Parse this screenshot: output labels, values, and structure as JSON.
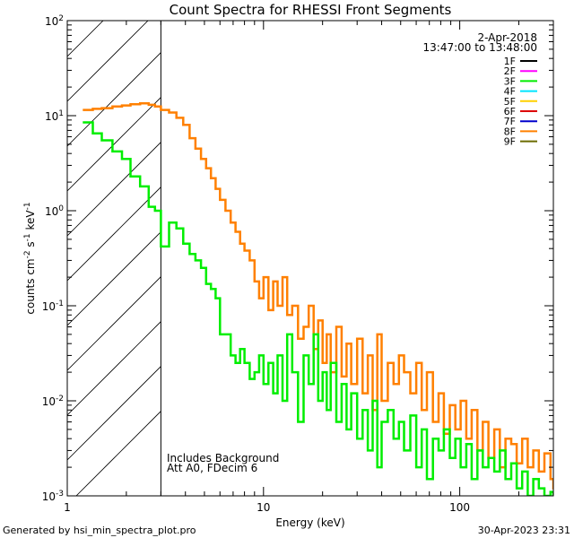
{
  "chart_data": {
    "type": "line",
    "title": "Count Spectra for RHESSI Front Segments",
    "xlabel": "Energy (keV)",
    "ylabel": {
      "base": "counts cm",
      "exp1": "-2",
      "mid": " s",
      "exp2": "-1",
      "mid2": " keV",
      "exp3": "-1"
    },
    "xscale": "log",
    "yscale": "log",
    "xlim": [
      1,
      300
    ],
    "ylim": [
      0.001,
      100
    ],
    "x_ticks": [
      {
        "value": 1,
        "label": "1"
      },
      {
        "value": 10,
        "label": "10"
      },
      {
        "value": 100,
        "label": "100"
      }
    ],
    "y_ticks": [
      {
        "value": 100,
        "base": "10",
        "exp": "2"
      },
      {
        "value": 10,
        "base": "10",
        "exp": "1"
      },
      {
        "value": 1,
        "base": "10",
        "exp": "0"
      },
      {
        "value": 0.1,
        "base": "10",
        "exp": "-1"
      },
      {
        "value": 0.01,
        "base": "10",
        "exp": "-2"
      },
      {
        "value": 0.001,
        "base": "10",
        "exp": "-3"
      }
    ],
    "hatched_region": {
      "x_min": 1,
      "x_max": 3
    },
    "annotations": {
      "date": "2-Apr-2018",
      "time_range": "13:47:00 to 13:48:00",
      "background_note": "Includes Background",
      "attenuator_note": "Att A0, FDecim 6"
    },
    "legend_position": "top-right",
    "legend": [
      {
        "name": "1F",
        "color": "#000000"
      },
      {
        "name": "2F",
        "color": "#ff00ff"
      },
      {
        "name": "3F",
        "color": "#00ee00"
      },
      {
        "name": "4F",
        "color": "#00e5ff"
      },
      {
        "name": "5F",
        "color": "#ffd000"
      },
      {
        "name": "6F",
        "color": "#dd0000"
      },
      {
        "name": "7F",
        "color": "#0000cc"
      },
      {
        "name": "8F",
        "color": "#ff8000"
      },
      {
        "name": "9F",
        "color": "#6b6b00"
      }
    ],
    "series": [
      {
        "name": "8F",
        "color": "#ff8000",
        "x": [
          1.2,
          1.35,
          1.5,
          1.7,
          1.9,
          2.1,
          2.35,
          2.6,
          2.8,
          3.0,
          3.3,
          3.6,
          3.9,
          4.2,
          4.5,
          4.8,
          5.1,
          5.4,
          5.7,
          6.0,
          6.4,
          6.8,
          7.2,
          7.6,
          8.0,
          8.5,
          9.0,
          9.5,
          10,
          10.6,
          11.2,
          11.8,
          12.5,
          13.2,
          14,
          15,
          16,
          17,
          18,
          19,
          20,
          21,
          22,
          23.5,
          25,
          26.5,
          28,
          30,
          32,
          34,
          36,
          38,
          40,
          43,
          46,
          49,
          52,
          56,
          60,
          64,
          68,
          73,
          78,
          83,
          89,
          95,
          101,
          108,
          115,
          123,
          131,
          140,
          150,
          160,
          171,
          183,
          195,
          208,
          222,
          237,
          253,
          270,
          290,
          300
        ],
        "values": [
          11.5,
          11.8,
          12,
          12.5,
          12.8,
          13.2,
          13.5,
          13,
          12.5,
          11.5,
          10.8,
          9.5,
          8,
          5.8,
          4.5,
          3.5,
          2.8,
          2.2,
          1.7,
          1.3,
          1.0,
          0.75,
          0.6,
          0.45,
          0.38,
          0.3,
          0.18,
          0.12,
          0.2,
          0.09,
          0.18,
          0.1,
          0.2,
          0.08,
          0.1,
          0.045,
          0.06,
          0.1,
          0.035,
          0.07,
          0.025,
          0.05,
          0.02,
          0.06,
          0.018,
          0.04,
          0.015,
          0.045,
          0.012,
          0.03,
          0.008,
          0.05,
          0.01,
          0.025,
          0.015,
          0.03,
          0.02,
          0.012,
          0.025,
          0.008,
          0.02,
          0.006,
          0.012,
          0.0045,
          0.009,
          0.005,
          0.01,
          0.004,
          0.008,
          0.003,
          0.006,
          0.0025,
          0.005,
          0.002,
          0.004,
          0.0035,
          0.0022,
          0.004,
          0.002,
          0.003,
          0.0018,
          0.0028,
          0.0015,
          0.0012
        ]
      },
      {
        "name": "3F",
        "color": "#00ee00",
        "x": [
          1.2,
          1.35,
          1.5,
          1.7,
          1.9,
          2.1,
          2.35,
          2.6,
          2.8,
          3.0,
          3.3,
          3.6,
          3.9,
          4.2,
          4.5,
          4.8,
          5.1,
          5.4,
          5.7,
          6.0,
          6.4,
          6.8,
          7.2,
          7.6,
          8.0,
          8.5,
          9.0,
          9.5,
          10,
          10.6,
          11.2,
          11.8,
          12.5,
          13.2,
          14,
          15,
          16,
          17,
          18,
          19,
          20,
          21,
          22,
          23.5,
          25,
          26.5,
          28,
          30,
          32,
          34,
          36,
          38,
          40,
          43,
          46,
          49,
          52,
          56,
          60,
          64,
          68,
          73,
          78,
          83,
          89,
          95,
          101,
          108,
          115,
          123,
          131,
          140,
          150,
          160,
          171,
          183,
          195,
          208,
          222,
          237,
          253,
          270,
          290,
          300
        ],
        "values": [
          8.5,
          6.5,
          5.5,
          4.2,
          3.5,
          2.3,
          1.8,
          1.1,
          1.0,
          0.42,
          0.75,
          0.65,
          0.45,
          0.35,
          0.3,
          0.25,
          0.17,
          0.15,
          0.12,
          0.05,
          0.05,
          0.03,
          0.025,
          0.035,
          0.025,
          0.017,
          0.02,
          0.03,
          0.015,
          0.025,
          0.012,
          0.03,
          0.01,
          0.05,
          0.02,
          0.006,
          0.03,
          0.015,
          0.05,
          0.01,
          0.02,
          0.008,
          0.025,
          0.006,
          0.015,
          0.005,
          0.012,
          0.004,
          0.008,
          0.003,
          0.01,
          0.002,
          0.006,
          0.008,
          0.004,
          0.006,
          0.003,
          0.007,
          0.002,
          0.005,
          0.0015,
          0.004,
          0.003,
          0.005,
          0.0025,
          0.004,
          0.002,
          0.0035,
          0.0015,
          0.003,
          0.002,
          0.0025,
          0.0018,
          0.003,
          0.0015,
          0.0022,
          0.0012,
          0.0018,
          0.001,
          0.0015,
          0.0012,
          0.001,
          0.0011,
          0.001
        ]
      }
    ]
  },
  "footer": {
    "left": "Generated by hsi_min_spectra_plot.pro",
    "right": "30-Apr-2023 23:31"
  }
}
